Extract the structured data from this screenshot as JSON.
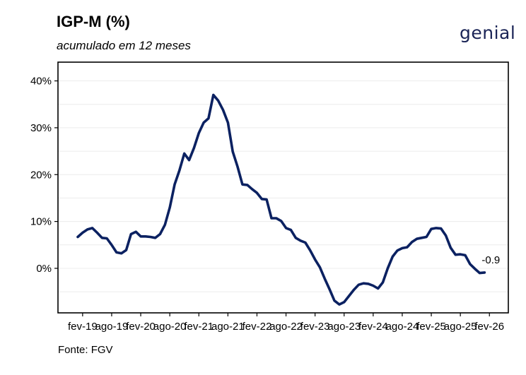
{
  "header": {
    "title": "IGP-M (%)",
    "subtitle": "acumulado em 12 meses",
    "logo_text": "genial"
  },
  "footer": {
    "source": "Fonte: FGV"
  },
  "colors": {
    "line": "#0b2161",
    "grid": "#ececec",
    "frame": "#000000"
  },
  "chart_data": {
    "type": "line",
    "title": "IGP-M (%)",
    "subtitle": "acumulado em 12 meses",
    "xlabel": "",
    "ylabel": "",
    "ylim": [
      -9.5,
      44
    ],
    "y_ticks": [
      0,
      10,
      20,
      30,
      40
    ],
    "y_tick_labels": [
      "0%",
      "10%",
      "20%",
      "30%",
      "40%"
    ],
    "x_tick_labels": [
      "fev-19",
      "ago-19",
      "fev-20",
      "ago-20",
      "fev-21",
      "ago-21",
      "fev-22",
      "ago-22",
      "fev-23",
      "ago-23",
      "fev-24",
      "ago-24",
      "fev-25",
      "ago-25",
      "fev-26"
    ],
    "grid": true,
    "last_value_label": "-0.9",
    "series": [
      {
        "x": [
          "jan-19",
          "fev-19",
          "mar-19",
          "abr-19",
          "mai-19",
          "jun-19",
          "jul-19",
          "ago-19",
          "set-19",
          "out-19",
          "nov-19",
          "dez-19",
          "jan-20",
          "fev-20",
          "mar-20",
          "abr-20",
          "mai-20",
          "jun-20",
          "jul-20",
          "ago-20",
          "set-20",
          "out-20",
          "nov-20",
          "dez-20",
          "jan-21",
          "fev-21",
          "mar-21",
          "abr-21",
          "mai-21",
          "jun-21",
          "jul-21",
          "ago-21",
          "set-21",
          "out-21",
          "nov-21",
          "dez-21",
          "jan-22",
          "fev-22",
          "mar-22",
          "abr-22",
          "mai-22",
          "jun-22",
          "jul-22",
          "ago-22",
          "set-22",
          "out-22",
          "nov-22",
          "dez-22",
          "jan-23",
          "fev-23",
          "mar-23",
          "abr-23",
          "mai-23",
          "jun-23",
          "jul-23",
          "ago-23",
          "set-23",
          "out-23",
          "nov-23",
          "dez-23",
          "jan-24",
          "fev-24",
          "mar-24",
          "abr-24",
          "mai-24",
          "jun-24",
          "jul-24",
          "ago-24",
          "set-24",
          "out-24",
          "nov-24",
          "dez-24",
          "jan-25",
          "fev-25",
          "mar-25",
          "abr-25",
          "mai-25",
          "jun-25",
          "jul-25",
          "ago-25",
          "set-25",
          "out-25",
          "nov-25",
          "dez-25",
          "jan-26"
        ],
        "values": [
          6.7,
          7.6,
          8.3,
          8.6,
          7.6,
          6.5,
          6.4,
          5.0,
          3.4,
          3.2,
          3.9,
          7.3,
          7.8,
          6.8,
          6.8,
          6.7,
          6.5,
          7.3,
          9.3,
          13.0,
          17.9,
          20.9,
          24.5,
          23.1,
          25.7,
          28.9,
          31.1,
          32.0,
          37.0,
          35.8,
          33.8,
          31.1,
          24.9,
          21.7,
          17.9,
          17.8,
          16.9,
          16.1,
          14.8,
          14.7,
          10.7,
          10.7,
          10.1,
          8.6,
          8.2,
          6.5,
          5.9,
          5.5,
          3.8,
          1.9,
          0.2,
          -2.2,
          -4.5,
          -6.9,
          -7.7,
          -7.2,
          -5.9,
          -4.6,
          -3.5,
          -3.2,
          -3.3,
          -3.7,
          -4.3,
          -3.0,
          0.0,
          2.5,
          3.8,
          4.3,
          4.5,
          5.6,
          6.3,
          6.5,
          6.7,
          8.4,
          8.6,
          8.5,
          7.0,
          4.4,
          2.9,
          3.0,
          2.8,
          0.9,
          -0.1,
          -1.0,
          -0.9
        ]
      }
    ]
  }
}
